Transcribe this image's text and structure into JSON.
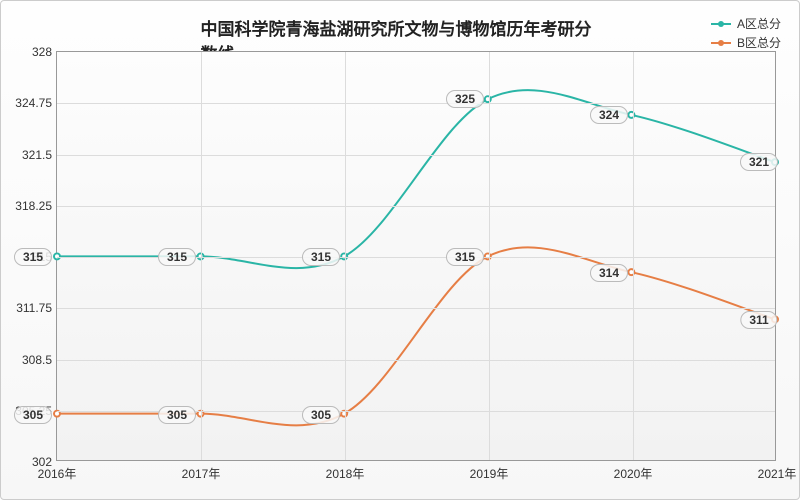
{
  "chart": {
    "type": "line",
    "title": "中国科学院青海盐湖研究所文物与博物馆历年考研分数线",
    "title_fontsize": 17,
    "background_color": "#f7f7f7",
    "grid_color": "#dcdcdc",
    "border_color": "#999999",
    "xlabels": [
      "2016年",
      "2017年",
      "2018年",
      "2019年",
      "2020年",
      "2021年"
    ],
    "ylim": [
      302,
      328
    ],
    "ytick_step": 3.25,
    "yticks": [
      "302",
      "305.25",
      "308.5",
      "311.75",
      "315",
      "318.25",
      "321.5",
      "324.75",
      "328"
    ],
    "label_fontsize": 12,
    "series": [
      {
        "name": "A区总分",
        "color": "#2ab5a6",
        "data": [
          315,
          315,
          315,
          325,
          324,
          321
        ],
        "line_width": 2,
        "marker": "circle",
        "marker_size": 6
      },
      {
        "name": "B区总分",
        "color": "#e67e45",
        "data": [
          305,
          305,
          305,
          315,
          314,
          311
        ],
        "line_width": 2,
        "marker": "circle",
        "marker_size": 6
      }
    ],
    "legend_position": "top-right",
    "smooth": true
  }
}
